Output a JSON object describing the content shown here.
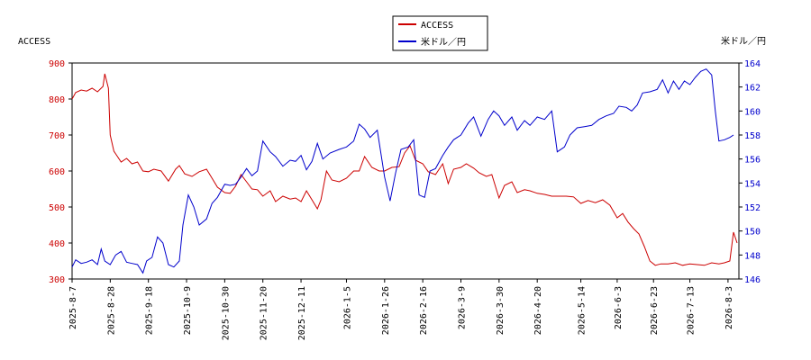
{
  "chart_data": {
    "type": "line",
    "left_axis_label": "ACCESS",
    "right_axis_label": "米ドル／円",
    "legend_placement": "top-center",
    "left_ylim": [
      300,
      900
    ],
    "left_yticks": [
      "300",
      "400",
      "500",
      "600",
      "700",
      "800",
      "900"
    ],
    "right_ylim": [
      146,
      164
    ],
    "right_yticks": [
      "146",
      "148",
      "150",
      "152",
      "154",
      "156",
      "158",
      "160",
      "162",
      "164"
    ],
    "x_range": [
      "2025-8-7",
      "2026-8-9"
    ],
    "x_ticks": [
      "2025-8-7",
      "2025-8-28",
      "2025-9-18",
      "2025-10-9",
      "2025-10-30",
      "2025-11-20",
      "2025-12-11",
      "2026-1-5",
      "2026-1-26",
      "2026-2-16",
      "2026-3-9",
      "2026-3-30",
      "2026-4-20",
      "2026-5-14",
      "2026-6-3",
      "2026-6-23",
      "2026-7-13",
      "2026-8-3"
    ],
    "grid": false,
    "series": [
      {
        "name": "ACCESS",
        "axis": "left",
        "color": "#cc0000",
        "points": [
          [
            "2025-8-7",
            800
          ],
          [
            "2025-8-9",
            818
          ],
          [
            "2025-8-12",
            825
          ],
          [
            "2025-8-15",
            822
          ],
          [
            "2025-8-18",
            830
          ],
          [
            "2025-8-21",
            820
          ],
          [
            "2025-8-24",
            835
          ],
          [
            "2025-8-25",
            870
          ],
          [
            "2025-8-27",
            830
          ],
          [
            "2025-8-28",
            700
          ],
          [
            "2025-8-30",
            655
          ],
          [
            "2025-9-1",
            640
          ],
          [
            "2025-9-3",
            625
          ],
          [
            "2025-9-6",
            635
          ],
          [
            "2025-9-9",
            620
          ],
          [
            "2025-9-12",
            625
          ],
          [
            "2025-9-15",
            600
          ],
          [
            "2025-9-18",
            598
          ],
          [
            "2025-9-21",
            605
          ],
          [
            "2025-9-25",
            600
          ],
          [
            "2025-9-29",
            572
          ],
          [
            "2025-10-3",
            605
          ],
          [
            "2025-10-5",
            615
          ],
          [
            "2025-10-8",
            592
          ],
          [
            "2025-10-12",
            585
          ],
          [
            "2025-10-16",
            598
          ],
          [
            "2025-10-20",
            605
          ],
          [
            "2025-10-23",
            580
          ],
          [
            "2025-10-26",
            555
          ],
          [
            "2025-10-30",
            540
          ],
          [
            "2025-11-2",
            538
          ],
          [
            "2025-11-5",
            558
          ],
          [
            "2025-11-8",
            590
          ],
          [
            "2025-11-11",
            570
          ],
          [
            "2025-11-14",
            550
          ],
          [
            "2025-11-17",
            548
          ],
          [
            "2025-11-20",
            530
          ],
          [
            "2025-11-24",
            545
          ],
          [
            "2025-11-27",
            515
          ],
          [
            "2025-12-1",
            530
          ],
          [
            "2025-12-5",
            522
          ],
          [
            "2025-12-8",
            525
          ],
          [
            "2025-12-11",
            515
          ],
          [
            "2025-12-14",
            545
          ],
          [
            "2025-12-17",
            520
          ],
          [
            "2025-12-20",
            495
          ],
          [
            "2025-12-22",
            520
          ],
          [
            "2025-12-25",
            600
          ],
          [
            "2025-12-28",
            575
          ],
          [
            "2026-1-1",
            570
          ],
          [
            "2026-1-5",
            580
          ],
          [
            "2026-1-9",
            600
          ],
          [
            "2026-1-12",
            600
          ],
          [
            "2026-1-15",
            640
          ],
          [
            "2026-1-19",
            610
          ],
          [
            "2026-1-23",
            600
          ],
          [
            "2026-1-26",
            600
          ],
          [
            "2026-1-30",
            610
          ],
          [
            "2026-2-3",
            612
          ],
          [
            "2026-2-6",
            650
          ],
          [
            "2026-2-9",
            670
          ],
          [
            "2026-2-12",
            630
          ],
          [
            "2026-2-16",
            620
          ],
          [
            "2026-2-19",
            598
          ],
          [
            "2026-2-23",
            590
          ],
          [
            "2026-2-27",
            620
          ],
          [
            "2026-3-2",
            565
          ],
          [
            "2026-3-5",
            605
          ],
          [
            "2026-3-9",
            610
          ],
          [
            "2026-3-12",
            620
          ],
          [
            "2026-3-16",
            608
          ],
          [
            "2026-3-19",
            595
          ],
          [
            "2026-3-23",
            585
          ],
          [
            "2026-3-26",
            590
          ],
          [
            "2026-3-30",
            525
          ],
          [
            "2026-4-2",
            560
          ],
          [
            "2026-4-6",
            570
          ],
          [
            "2026-4-9",
            540
          ],
          [
            "2026-4-13",
            548
          ],
          [
            "2026-4-16",
            545
          ],
          [
            "2026-4-20",
            538
          ],
          [
            "2026-4-24",
            535
          ],
          [
            "2026-4-28",
            530
          ],
          [
            "2026-5-2",
            530
          ],
          [
            "2026-5-6",
            530
          ],
          [
            "2026-5-10",
            528
          ],
          [
            "2026-5-14",
            510
          ],
          [
            "2026-5-18",
            518
          ],
          [
            "2026-5-22",
            512
          ],
          [
            "2026-5-26",
            520
          ],
          [
            "2026-5-30",
            505
          ],
          [
            "2026-6-3",
            470
          ],
          [
            "2026-6-6",
            482
          ],
          [
            "2026-6-9",
            458
          ],
          [
            "2026-6-12",
            440
          ],
          [
            "2026-6-15",
            425
          ],
          [
            "2026-6-18",
            390
          ],
          [
            "2026-6-21",
            350
          ],
          [
            "2026-6-24",
            338
          ],
          [
            "2026-6-27",
            342
          ],
          [
            "2026-7-1",
            342
          ],
          [
            "2026-7-5",
            345
          ],
          [
            "2026-7-9",
            338
          ],
          [
            "2026-7-13",
            342
          ],
          [
            "2026-7-17",
            340
          ],
          [
            "2026-7-21",
            338
          ],
          [
            "2026-7-25",
            345
          ],
          [
            "2026-7-29",
            342
          ],
          [
            "2026-8-1",
            345
          ],
          [
            "2026-8-4",
            350
          ],
          [
            "2026-8-6",
            430
          ],
          [
            "2026-8-8",
            400
          ]
        ]
      },
      {
        "name": "米ドル／円",
        "axis": "right",
        "color": "#0000cc",
        "points": [
          [
            "2025-8-7",
            147.0
          ],
          [
            "2025-8-9",
            147.6
          ],
          [
            "2025-8-12",
            147.3
          ],
          [
            "2025-8-15",
            147.4
          ],
          [
            "2025-8-18",
            147.6
          ],
          [
            "2025-8-21",
            147.2
          ],
          [
            "2025-8-23",
            148.5
          ],
          [
            "2025-8-25",
            147.5
          ],
          [
            "2025-8-28",
            147.2
          ],
          [
            "2025-8-31",
            148.0
          ],
          [
            "2025-9-3",
            148.3
          ],
          [
            "2025-9-6",
            147.4
          ],
          [
            "2025-9-9",
            147.3
          ],
          [
            "2025-9-12",
            147.2
          ],
          [
            "2025-9-15",
            146.5
          ],
          [
            "2025-9-17",
            147.5
          ],
          [
            "2025-9-20",
            147.8
          ],
          [
            "2025-9-23",
            149.5
          ],
          [
            "2025-9-26",
            149.0
          ],
          [
            "2025-9-29",
            147.2
          ],
          [
            "2025-10-2",
            147.0
          ],
          [
            "2025-10-5",
            147.5
          ],
          [
            "2025-10-7",
            150.5
          ],
          [
            "2025-10-10",
            153.0
          ],
          [
            "2025-10-13",
            152.0
          ],
          [
            "2025-10-16",
            150.5
          ],
          [
            "2025-10-20",
            151.0
          ],
          [
            "2025-10-23",
            152.3
          ],
          [
            "2025-10-26",
            152.8
          ],
          [
            "2025-10-30",
            153.9
          ],
          [
            "2025-11-2",
            153.8
          ],
          [
            "2025-11-5",
            153.9
          ],
          [
            "2025-11-8",
            154.5
          ],
          [
            "2025-11-11",
            155.2
          ],
          [
            "2025-11-14",
            154.6
          ],
          [
            "2025-11-17",
            155.0
          ],
          [
            "2025-11-20",
            157.5
          ],
          [
            "2025-11-24",
            156.6
          ],
          [
            "2025-11-27",
            156.2
          ],
          [
            "2025-12-1",
            155.4
          ],
          [
            "2025-12-5",
            155.9
          ],
          [
            "2025-12-8",
            155.8
          ],
          [
            "2025-12-11",
            156.3
          ],
          [
            "2025-12-14",
            155.1
          ],
          [
            "2025-12-17",
            155.8
          ],
          [
            "2025-12-20",
            157.3
          ],
          [
            "2025-12-23",
            156.0
          ],
          [
            "2025-12-27",
            156.5
          ],
          [
            "2026-1-1",
            156.8
          ],
          [
            "2026-1-5",
            157.0
          ],
          [
            "2026-1-9",
            157.5
          ],
          [
            "2026-1-12",
            158.9
          ],
          [
            "2026-1-15",
            158.5
          ],
          [
            "2026-1-18",
            157.8
          ],
          [
            "2026-1-22",
            158.4
          ],
          [
            "2026-1-26",
            154.5
          ],
          [
            "2026-1-29",
            152.5
          ],
          [
            "2026-2-1",
            154.8
          ],
          [
            "2026-2-4",
            156.8
          ],
          [
            "2026-2-8",
            157.0
          ],
          [
            "2026-2-11",
            157.6
          ],
          [
            "2026-2-14",
            153.0
          ],
          [
            "2026-2-17",
            152.8
          ],
          [
            "2026-2-20",
            155.0
          ],
          [
            "2026-2-23",
            155.2
          ],
          [
            "2026-2-27",
            156.3
          ],
          [
            "2026-3-2",
            157.0
          ],
          [
            "2026-3-5",
            157.6
          ],
          [
            "2026-3-9",
            158.0
          ],
          [
            "2026-3-13",
            159.0
          ],
          [
            "2026-3-16",
            159.5
          ],
          [
            "2026-3-20",
            157.9
          ],
          [
            "2026-3-24",
            159.3
          ],
          [
            "2026-3-27",
            160.0
          ],
          [
            "2026-3-30",
            159.6
          ],
          [
            "2026-4-2",
            158.8
          ],
          [
            "2026-4-6",
            159.5
          ],
          [
            "2026-4-9",
            158.4
          ],
          [
            "2026-4-13",
            159.2
          ],
          [
            "2026-4-16",
            158.8
          ],
          [
            "2026-4-20",
            159.5
          ],
          [
            "2026-4-24",
            159.3
          ],
          [
            "2026-4-28",
            160.0
          ],
          [
            "2026-5-1",
            156.6
          ],
          [
            "2026-5-5",
            157.0
          ],
          [
            "2026-5-8",
            158.0
          ],
          [
            "2026-5-12",
            158.6
          ],
          [
            "2026-5-16",
            158.7
          ],
          [
            "2026-5-20",
            158.8
          ],
          [
            "2026-5-24",
            159.3
          ],
          [
            "2026-5-28",
            159.6
          ],
          [
            "2026-6-1",
            159.8
          ],
          [
            "2026-6-4",
            160.4
          ],
          [
            "2026-6-8",
            160.3
          ],
          [
            "2026-6-11",
            160.0
          ],
          [
            "2026-6-14",
            160.5
          ],
          [
            "2026-6-17",
            161.5
          ],
          [
            "2026-6-21",
            161.6
          ],
          [
            "2026-6-25",
            161.8
          ],
          [
            "2026-6-28",
            162.6
          ],
          [
            "2026-7-1",
            161.5
          ],
          [
            "2026-7-4",
            162.5
          ],
          [
            "2026-7-7",
            161.8
          ],
          [
            "2026-7-10",
            162.5
          ],
          [
            "2026-7-13",
            162.2
          ],
          [
            "2026-7-16",
            162.8
          ],
          [
            "2026-7-19",
            163.3
          ],
          [
            "2026-7-22",
            163.5
          ],
          [
            "2026-7-25",
            163.0
          ],
          [
            "2026-7-27",
            160.0
          ],
          [
            "2026-7-29",
            157.5
          ],
          [
            "2026-8-1",
            157.6
          ],
          [
            "2026-8-4",
            157.8
          ],
          [
            "2026-8-6",
            158.0
          ]
        ]
      }
    ]
  }
}
